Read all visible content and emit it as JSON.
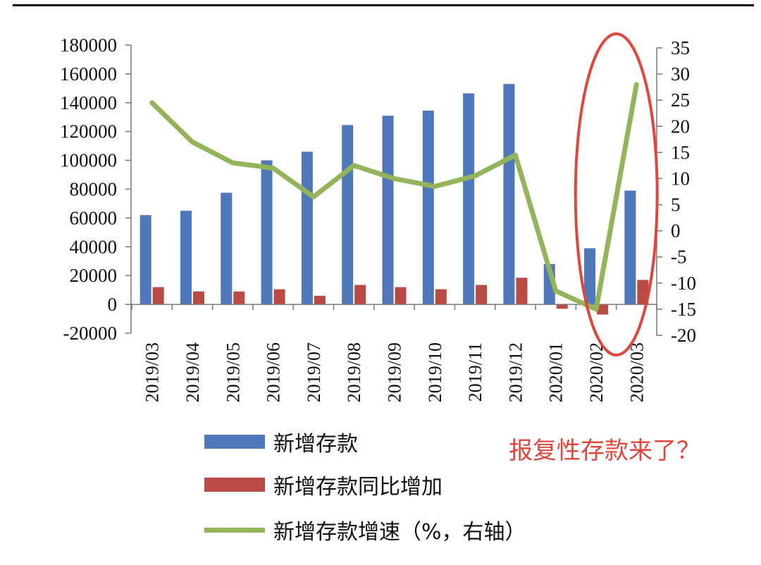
{
  "colors": {
    "deposit_bar": "#4f78ba",
    "yoy_bar": "#b94a44",
    "growth_line": "#94b45b",
    "highlight": "#e0463c"
  },
  "chart_data": {
    "type": "bar",
    "combo": "bar+line, dual y-axis",
    "categories": [
      "2019/03",
      "2019/04",
      "2019/05",
      "2019/06",
      "2019/07",
      "2019/08",
      "2019/09",
      "2019/10",
      "2019/11",
      "2019/12",
      "2020/01",
      "2020/02",
      "2020/03"
    ],
    "series": [
      {
        "name": "新增存款",
        "type": "bar",
        "axis": "left",
        "color": "#4f78ba",
        "values": [
          62000,
          65000,
          77500,
          100000,
          106000,
          124500,
          131000,
          134500,
          146500,
          153000,
          28000,
          39000,
          79000
        ]
      },
      {
        "name": "新增存款同比增加",
        "type": "bar",
        "axis": "left",
        "color": "#b94a44",
        "values": [
          12000,
          9000,
          9000,
          10500,
          6000,
          13500,
          12000,
          10500,
          13500,
          18500,
          -3000,
          -7000,
          17000
        ]
      },
      {
        "name": "新增存款增速（%，右轴）",
        "type": "line",
        "axis": "right",
        "color": "#94b45b",
        "values": [
          24.5,
          17,
          13,
          12,
          6.5,
          12.5,
          10,
          8.5,
          10.5,
          14.5,
          -11.5,
          -15,
          28
        ]
      }
    ],
    "left_axis": {
      "ylim": [
        -20000,
        180000
      ],
      "ticks": [
        -20000,
        0,
        20000,
        40000,
        60000,
        80000,
        100000,
        120000,
        140000,
        160000,
        180000
      ]
    },
    "right_axis": {
      "ylim": [
        -20,
        35
      ],
      "ticks": [
        -20,
        -15,
        -10,
        -5,
        0,
        5,
        10,
        15,
        20,
        25,
        30,
        35
      ]
    },
    "highlight_ellipse_around": "2020/02–2020/03",
    "annotation": "报复性存款来了？",
    "legend_position": "bottom-left",
    "grid": false
  }
}
